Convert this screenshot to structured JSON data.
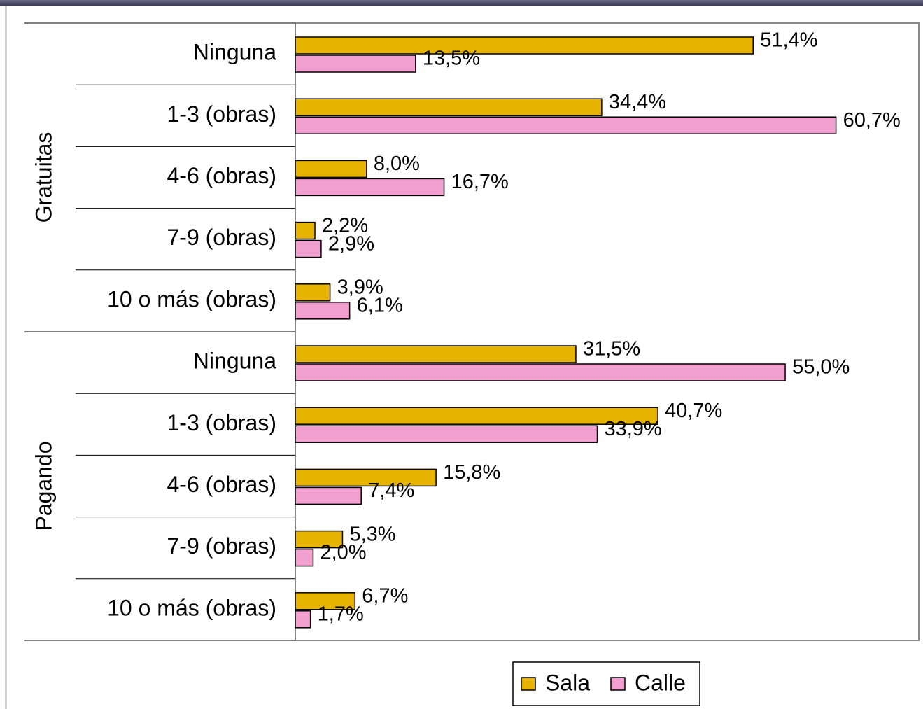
{
  "chart_data": {
    "type": "bar",
    "orientation": "horizontal",
    "groups": [
      {
        "name": "Gratuitas",
        "categories": [
          "Ninguna",
          "1-3 (obras)",
          "4-6 (obras)",
          "7-9 (obras)",
          "10 o más (obras)"
        ]
      },
      {
        "name": "Pagando",
        "categories": [
          "Ninguna",
          "1-3 (obras)",
          "4-6 (obras)",
          "7-9 (obras)",
          "10 o más (obras)"
        ]
      }
    ],
    "series": [
      {
        "name": "Sala",
        "color": "#e6b400",
        "values": [
          51.4,
          34.4,
          8.0,
          2.2,
          3.9,
          31.5,
          40.7,
          15.8,
          5.3,
          6.7
        ],
        "value_labels": [
          "51,4%",
          "34,4%",
          "8,0%",
          "2,2%",
          "3,9%",
          "31,5%",
          "40,7%",
          "15,8%",
          "5,3%",
          "6,7%"
        ]
      },
      {
        "name": "Calle",
        "color": "#f2a0cf",
        "values": [
          13.5,
          60.7,
          16.7,
          2.9,
          6.1,
          55.0,
          33.9,
          7.4,
          2.0,
          1.7
        ],
        "value_labels": [
          "13,5%",
          "60,7%",
          "16,7%",
          "2,9%",
          "6,1%",
          "55,0%",
          "33,9%",
          "7,4%",
          "2,0%",
          "1,7%"
        ]
      }
    ],
    "xlim": [
      0,
      70
    ]
  }
}
